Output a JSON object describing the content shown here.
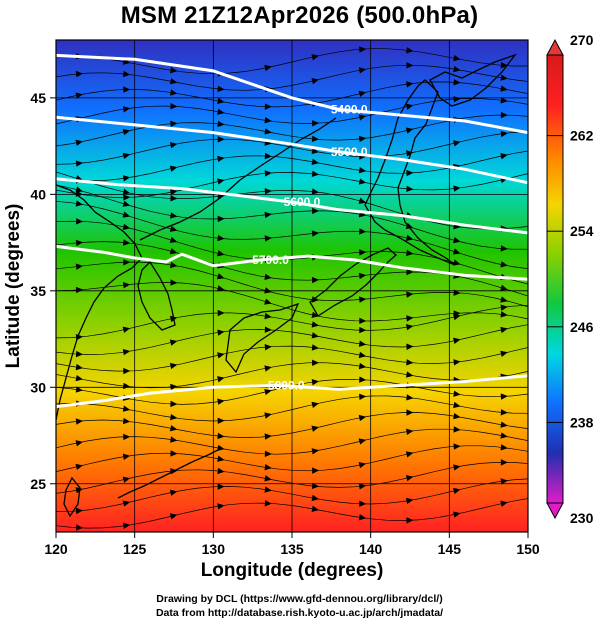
{
  "title": "MSM 21Z12Apr2026 (500.0hPa)",
  "map": {
    "lon_range": [
      120,
      150
    ],
    "lat_range": [
      22.5,
      48
    ],
    "xlabel": "Longitude (degrees)",
    "ylabel": "Latitude  (degrees)",
    "x_ticks": [
      "120",
      "125",
      "130",
      "135",
      "140",
      "145",
      "150"
    ],
    "y_ticks": [
      "25",
      "30",
      "35",
      "40",
      "45"
    ],
    "field_colors": [
      "#ff2222",
      "#ff7a00",
      "#f5d400",
      "#8ad000",
      "#1ec400",
      "#00d8d8",
      "#1070ff",
      "#3030c0"
    ]
  },
  "colorbar": {
    "range": [
      230,
      270
    ],
    "tick_labels": [
      "270",
      "262",
      "254",
      "246",
      "238",
      "230"
    ],
    "colors": [
      "#e01cc8",
      "#2030b0",
      "#1070ff",
      "#00d8e0",
      "#10c840",
      "#8ad000",
      "#f5d400",
      "#ff8000",
      "#ff2020",
      "#d81a1a"
    ]
  },
  "contours": [
    {
      "label": "5400.0",
      "points": [
        [
          120,
          47.2
        ],
        [
          125,
          47.0
        ],
        [
          130,
          46.4
        ],
        [
          135,
          45.0
        ],
        [
          138,
          44.4
        ],
        [
          142,
          44.1
        ],
        [
          146,
          43.8
        ],
        [
          150,
          43.2
        ]
      ]
    },
    {
      "label": "5500.0",
      "points": [
        [
          120,
          44.0
        ],
        [
          125,
          43.6
        ],
        [
          130,
          43.2
        ],
        [
          135,
          42.6
        ],
        [
          138,
          42.2
        ],
        [
          142,
          41.8
        ],
        [
          146,
          41.3
        ],
        [
          150,
          40.6
        ]
      ]
    },
    {
      "label": "5600.0",
      "points": [
        [
          120,
          40.8
        ],
        [
          124,
          40.5
        ],
        [
          128,
          40.3
        ],
        [
          132,
          39.9
        ],
        [
          135,
          39.6
        ],
        [
          138,
          39.2
        ],
        [
          142,
          38.9
        ],
        [
          146,
          38.4
        ],
        [
          150,
          38.0
        ]
      ]
    },
    {
      "label": "5700.0",
      "points": [
        [
          120,
          37.3
        ],
        [
          123,
          37.0
        ],
        [
          125,
          36.7
        ],
        [
          127,
          36.5
        ],
        [
          128,
          36.9
        ],
        [
          130,
          36.3
        ],
        [
          133,
          36.6
        ],
        [
          136,
          36.8
        ],
        [
          139,
          36.6
        ],
        [
          142,
          36.2
        ],
        [
          146,
          35.8
        ],
        [
          150,
          35.6
        ]
      ]
    },
    {
      "label": "5800.0",
      "points": [
        [
          120,
          29.0
        ],
        [
          123,
          29.3
        ],
        [
          126,
          29.7
        ],
        [
          130,
          30.0
        ],
        [
          134,
          30.1
        ],
        [
          138,
          29.9
        ],
        [
          142,
          30.1
        ],
        [
          146,
          30.3
        ],
        [
          150,
          30.6
        ]
      ]
    }
  ],
  "credits": {
    "line1": "Drawing by DCL (https://www.gfd-dennou.org/library/dcl/)",
    "line2": "Data from http://database.rish.kyoto-u.ac.jp/arch/jmadata/"
  }
}
